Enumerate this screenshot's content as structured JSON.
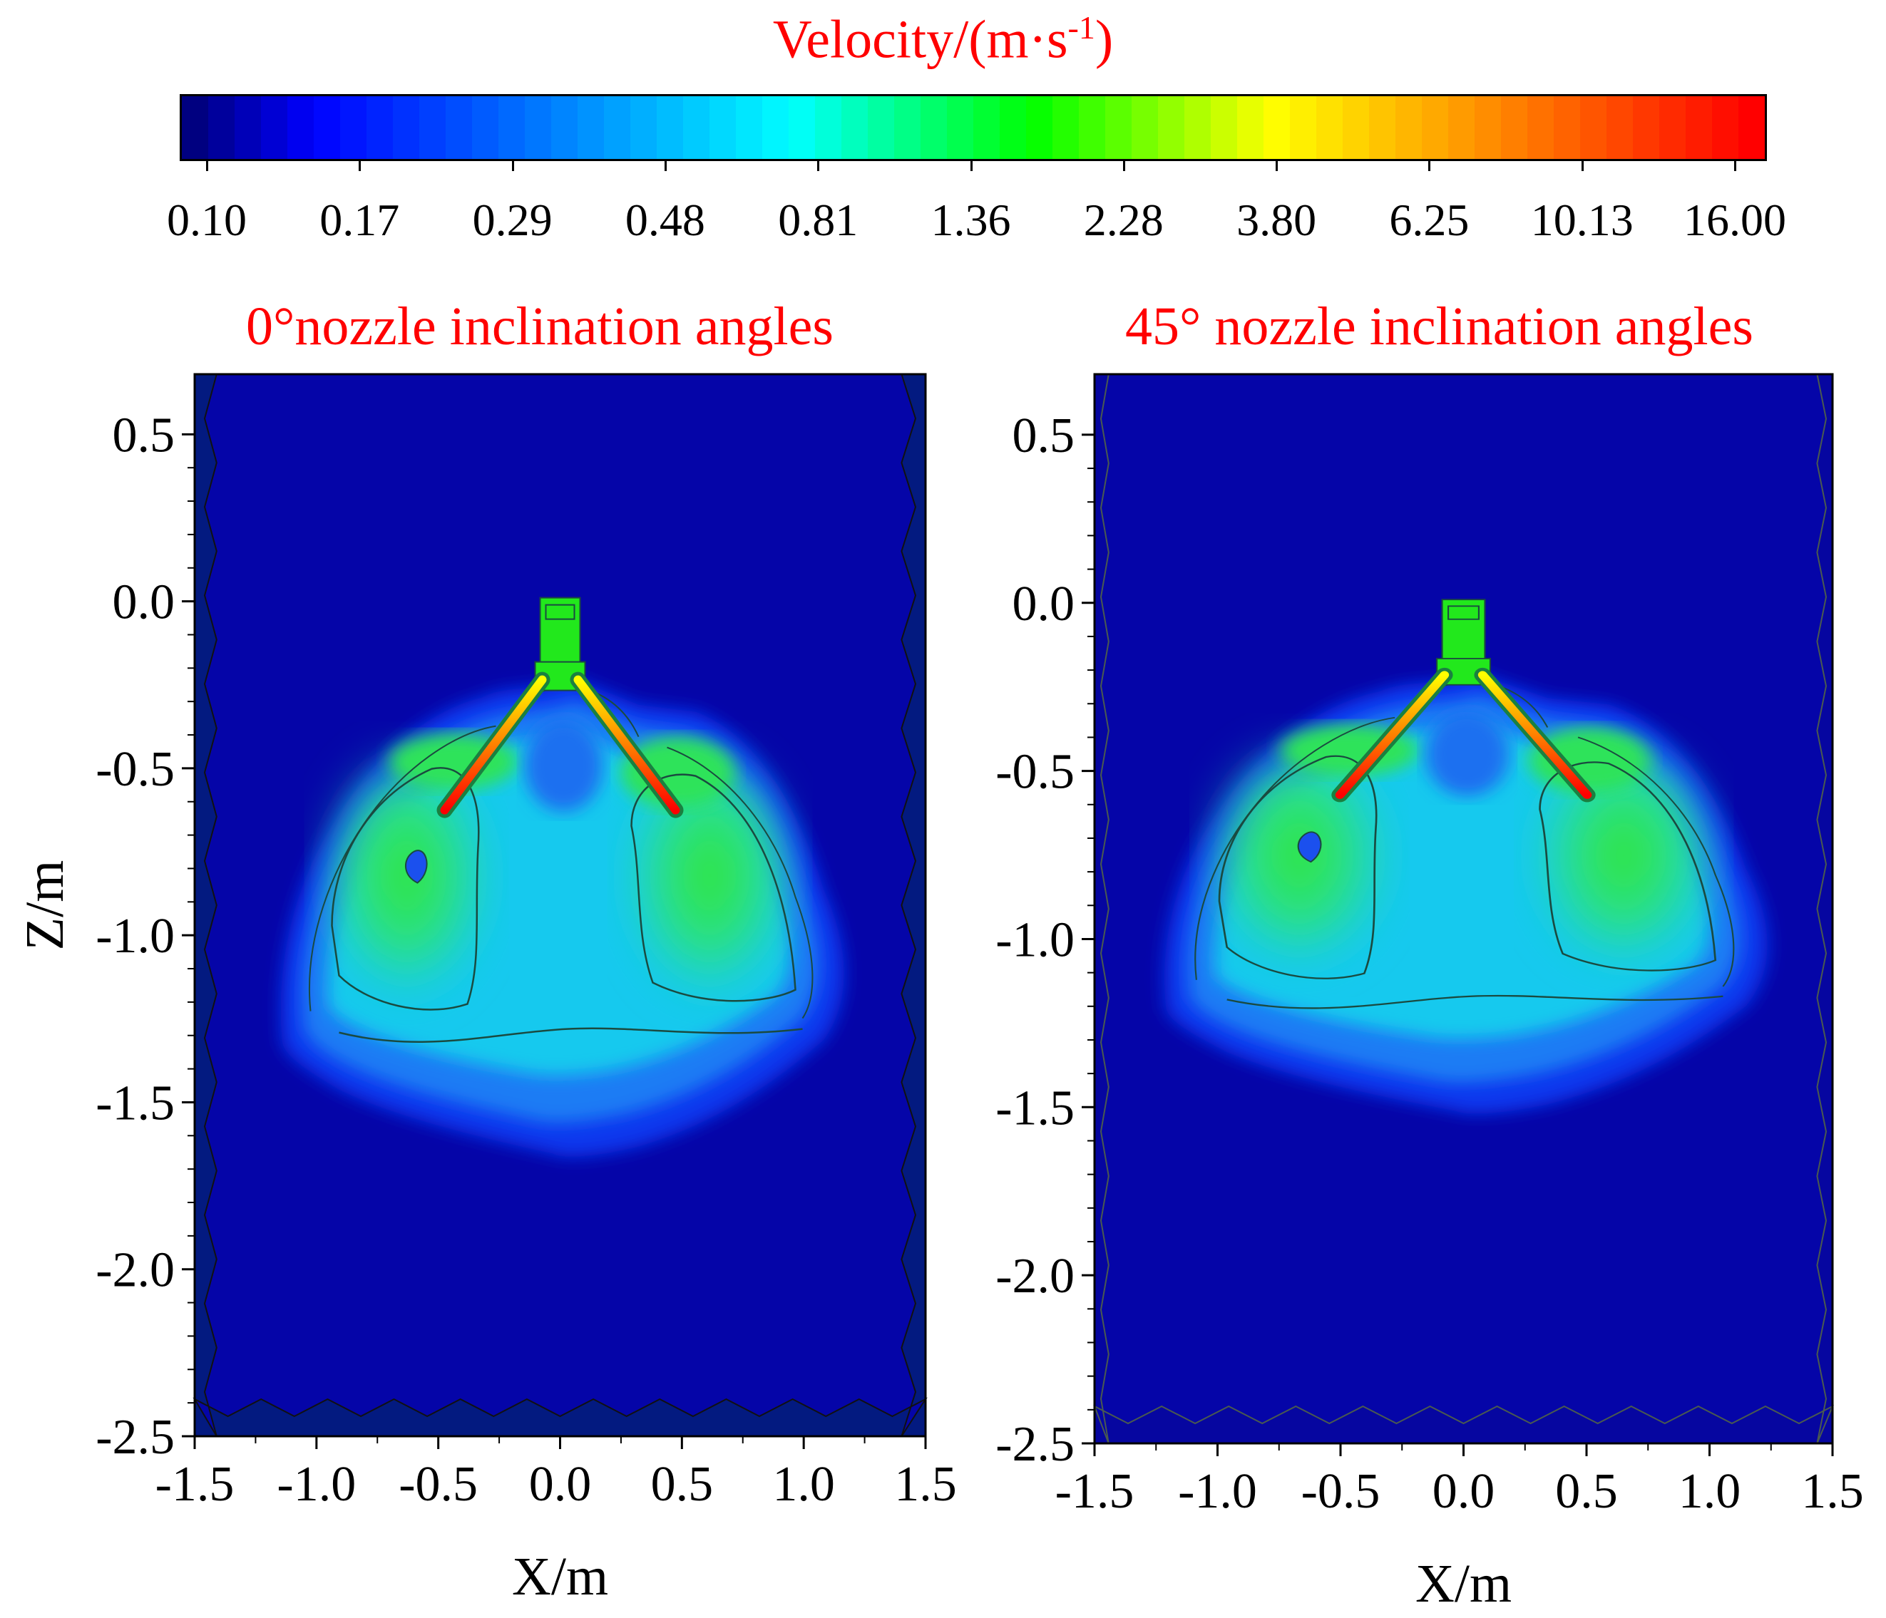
{
  "colorbar": {
    "title": "Velocity/(m·s",
    "title_sup": "-1",
    "title_close": ")",
    "ticks": [
      "0.10",
      "0.17",
      "0.29",
      "0.48",
      "0.81",
      "1.36",
      "2.28",
      "3.80",
      "6.25",
      "10.13",
      "16.00"
    ],
    "colors": [
      "#000080",
      "#0000ff",
      "#0040ff",
      "#0080ff",
      "#00bfff",
      "#00ffff",
      "#00ff80",
      "#00ff00",
      "#80ff00",
      "#ffff00",
      "#ffbf00",
      "#ff8000",
      "#ff4000",
      "#ff0000"
    ]
  },
  "chart_data": [
    {
      "type": "heatmap",
      "title": "0°nozzle inclination angles",
      "xlabel": "X/m",
      "ylabel": "Z/m",
      "xlim": [
        -1.5,
        1.5
      ],
      "ylim": [
        -2.5,
        0.68
      ],
      "xticks": [
        "-1.5",
        "-1.0",
        "-0.5",
        "0.0",
        "0.5",
        "1.0",
        "1.5"
      ],
      "yticks": [
        "0.5",
        "0.0",
        "-0.5",
        "-1.0",
        "-1.5",
        "-2.0",
        "-2.5"
      ],
      "xtick_values": [
        -1.5,
        -1.0,
        -0.5,
        0.0,
        0.5,
        1.0,
        1.5
      ],
      "ytick_values": [
        0.5,
        0.0,
        -0.5,
        -1.0,
        -1.5,
        -2.0,
        -2.5
      ],
      "nozzles": [
        [
          -0.48,
          -0.63
        ],
        [
          0.48,
          -0.63
        ]
      ],
      "nozzle_origin": [
        0.0,
        -0.2
      ],
      "plume_extent_z": -1.68
    },
    {
      "type": "heatmap",
      "title": "45° nozzle inclination angles",
      "xlabel": "X/m",
      "ylabel": "",
      "xlim": [
        -1.5,
        1.5
      ],
      "ylim": [
        -2.5,
        0.68
      ],
      "xticks": [
        "-1.5",
        "-1.0",
        "-0.5",
        "0.0",
        "0.5",
        "1.0",
        "1.5"
      ],
      "yticks": [
        "0.5",
        "0.0",
        "-0.5",
        "-1.0",
        "-1.5",
        "-2.0",
        "-2.5"
      ],
      "xtick_values": [
        -1.5,
        -1.0,
        -0.5,
        0.0,
        0.5,
        1.0,
        1.5
      ],
      "ytick_values": [
        0.5,
        0.0,
        -0.5,
        -1.0,
        -1.5,
        -2.0,
        -2.5
      ],
      "nozzles": [
        [
          -0.5,
          -0.63
        ],
        [
          0.5,
          -0.63
        ]
      ],
      "nozzle_origin": [
        0.0,
        -0.2
      ],
      "plume_extent_z": -1.58
    }
  ]
}
